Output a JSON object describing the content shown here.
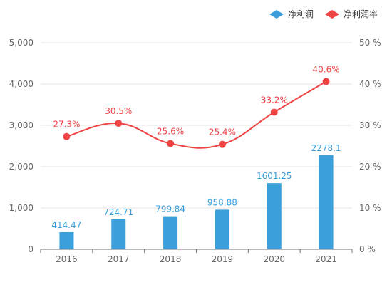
{
  "chart_data": {
    "type": "bar",
    "categories": [
      "2016",
      "2017",
      "2018",
      "2019",
      "2020",
      "2021"
    ],
    "series": [
      {
        "name": "净利润",
        "type": "bar",
        "axis": "left",
        "color": "#3a9fdb",
        "values": [
          414.47,
          724.71,
          799.84,
          958.88,
          1601.25,
          2278.1
        ],
        "labels": [
          "414.47",
          "724.71",
          "799.84",
          "958.88",
          "1601.25",
          "2278.1"
        ]
      },
      {
        "name": "净利润率",
        "type": "line",
        "axis": "right",
        "color": "#ee4444",
        "values": [
          27.3,
          30.5,
          25.6,
          25.4,
          33.2,
          40.6
        ],
        "labels": [
          "27.3%",
          "30.5%",
          "25.6%",
          "25.4%",
          "33.2%",
          "40.6%"
        ]
      }
    ],
    "y_left": {
      "min": 0,
      "max": 5000,
      "ticks": [
        "0",
        "1,000",
        "2,000",
        "3,000",
        "4,000",
        "5,000"
      ]
    },
    "y_right": {
      "min": 0,
      "max": 50,
      "ticks": [
        "0 %",
        "10 %",
        "20 %",
        "30 %",
        "40 %",
        "50 %"
      ]
    },
    "grid": true,
    "legend_position": "top-right",
    "title": "",
    "xlabel": "",
    "ylabel": ""
  }
}
